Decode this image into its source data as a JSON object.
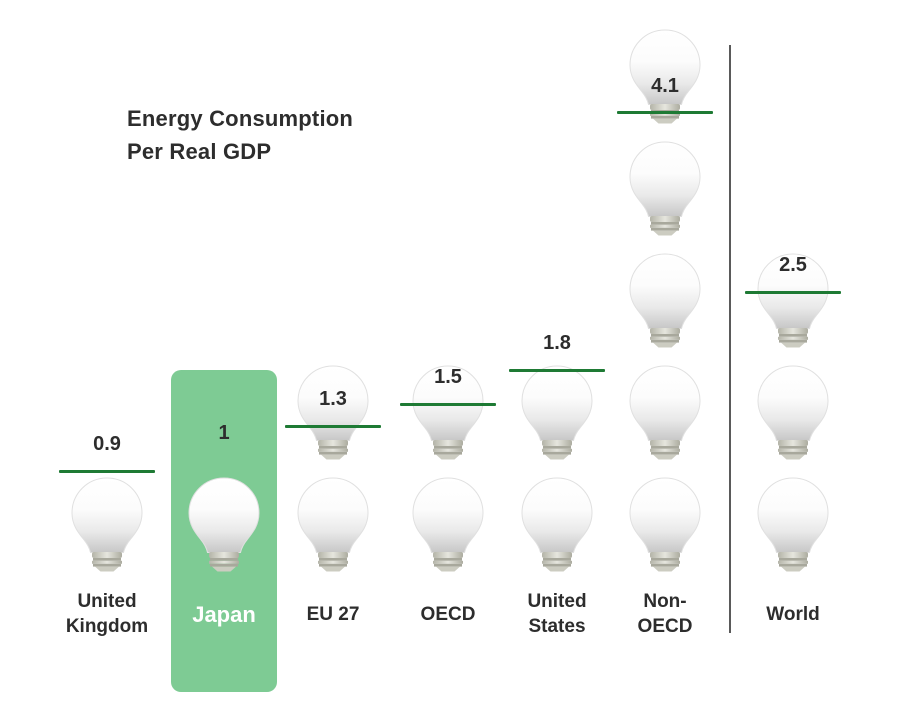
{
  "title": {
    "line1": "Energy Consumption",
    "line2": "Per Real GDP"
  },
  "colors": {
    "highlight_bg": "#7ecb94",
    "marker_line": "#1e7a34",
    "text": "#2d2d2d",
    "highlight_text": "#ffffff",
    "divider": "#5a5a5a"
  },
  "chart_data": {
    "type": "pictogram-bar",
    "title": "Energy Consumption Per Real GDP",
    "icon": "lightbulb-icon",
    "icon_unit": 1,
    "grid": false,
    "legend": "none",
    "categories": [
      "United Kingdom",
      "Japan",
      "EU 27",
      "OECD",
      "United States",
      "Non-OECD",
      "World"
    ],
    "values": [
      0.9,
      1,
      1.3,
      1.5,
      1.8,
      4.1,
      2.5
    ],
    "highlighted_category": "Japan",
    "divider_between": [
      "Non-OECD",
      "World"
    ],
    "columns": [
      {
        "label": "United Kingdom",
        "value": 0.9,
        "value_label": "0.9",
        "marker_line": true,
        "highlight": false
      },
      {
        "label": "Japan",
        "value": 1,
        "value_label": "1",
        "marker_line": false,
        "highlight": true
      },
      {
        "label": "EU 27",
        "value": 1.3,
        "value_label": "1.3",
        "marker_line": true,
        "highlight": false
      },
      {
        "label": "OECD",
        "value": 1.5,
        "value_label": "1.5",
        "marker_line": true,
        "highlight": false
      },
      {
        "label": "United States",
        "value": 1.8,
        "value_label": "1.8",
        "marker_line": true,
        "highlight": false
      },
      {
        "label": "Non-OECD",
        "value": 4.1,
        "value_label": "4.1",
        "marker_line": true,
        "highlight": false
      },
      {
        "label": "World",
        "value": 2.5,
        "value_label": "2.5",
        "marker_line": true,
        "highlight": false
      }
    ]
  }
}
